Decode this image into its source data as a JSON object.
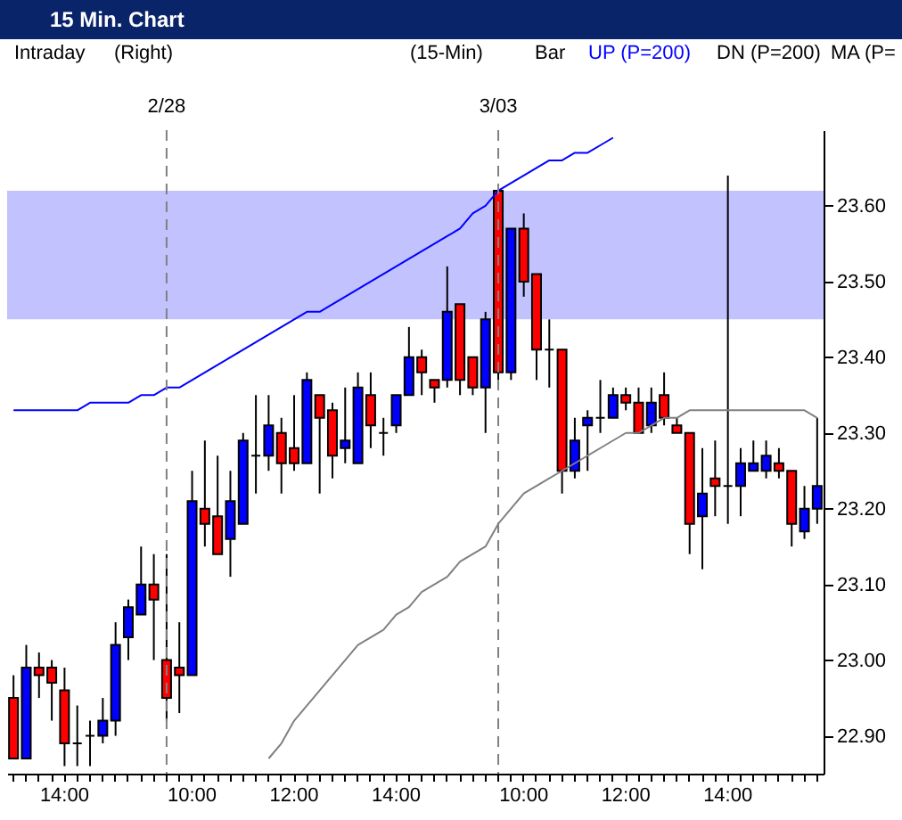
{
  "chart_data": {
    "type": "candlestick",
    "title": "15 Min. Chart",
    "annotations": [
      "Intraday",
      "(Right)",
      "(15-Min)",
      "Bar",
      "DN (P=200)",
      "MA (P=",
      "2/28",
      "3/03"
    ],
    "categories": [
      null,
      null,
      null,
      null,
      "14:00",
      null,
      null,
      null,
      null,
      null,
      null,
      null,
      null,
      null,
      "10:00",
      null,
      null,
      null,
      null,
      null,
      null,
      null,
      "12:00",
      null,
      null,
      null,
      null,
      null,
      null,
      null,
      "14:00",
      null,
      null,
      null,
      null,
      null,
      null,
      null,
      null,
      null,
      "10:00",
      null,
      null,
      null,
      null,
      null,
      null,
      null,
      "12:00",
      null,
      null,
      null,
      null,
      null,
      null,
      null,
      "14:00",
      null,
      null,
      null,
      null,
      null,
      null,
      null
    ],
    "ohlc": [
      [
        22.95,
        22.98,
        22.87,
        22.87
      ],
      [
        22.87,
        23.02,
        22.87,
        22.99
      ],
      [
        22.99,
        23.01,
        22.95,
        22.98
      ],
      [
        22.99,
        23.0,
        22.92,
        22.97
      ],
      [
        22.96,
        22.99,
        22.86,
        22.89
      ],
      [
        22.89,
        22.94,
        22.86,
        22.89
      ],
      [
        22.9,
        22.92,
        22.86,
        22.9
      ],
      [
        22.9,
        22.95,
        22.89,
        22.92
      ],
      [
        22.92,
        23.05,
        22.9,
        23.02
      ],
      [
        23.03,
        23.08,
        23.0,
        23.07
      ],
      [
        23.06,
        23.15,
        23.06,
        23.1
      ],
      [
        23.1,
        23.14,
        23.0,
        23.08
      ],
      [
        23.0,
        23.14,
        22.92,
        22.95
      ],
      [
        22.99,
        23.05,
        22.93,
        22.98
      ],
      [
        22.98,
        23.25,
        22.98,
        23.21
      ],
      [
        23.2,
        23.29,
        23.15,
        23.18
      ],
      [
        23.19,
        23.27,
        23.14,
        23.14
      ],
      [
        23.16,
        23.25,
        23.11,
        23.21
      ],
      [
        23.18,
        23.3,
        23.18,
        23.29
      ],
      [
        23.27,
        23.35,
        23.22,
        23.27
      ],
      [
        23.27,
        23.35,
        23.25,
        23.31
      ],
      [
        23.3,
        23.32,
        23.22,
        23.26
      ],
      [
        23.28,
        23.35,
        23.25,
        23.26
      ],
      [
        23.26,
        23.38,
        23.26,
        23.37
      ],
      [
        23.35,
        23.35,
        23.22,
        23.32
      ],
      [
        23.33,
        23.34,
        23.24,
        23.27
      ],
      [
        23.28,
        23.36,
        23.26,
        23.29
      ],
      [
        23.26,
        23.38,
        23.26,
        23.36
      ],
      [
        23.35,
        23.38,
        23.28,
        23.31
      ],
      [
        23.3,
        23.32,
        23.27,
        23.3
      ],
      [
        23.31,
        23.35,
        23.3,
        23.35
      ],
      [
        23.35,
        23.44,
        23.35,
        23.4
      ],
      [
        23.4,
        23.41,
        23.35,
        23.38
      ],
      [
        23.37,
        23.37,
        23.34,
        23.36
      ],
      [
        23.37,
        23.52,
        23.36,
        23.46
      ],
      [
        23.47,
        23.47,
        23.35,
        23.37
      ],
      [
        23.4,
        23.4,
        23.35,
        23.36
      ],
      [
        23.36,
        23.46,
        23.3,
        23.45
      ],
      [
        23.62,
        23.62,
        23.36,
        23.38
      ],
      [
        23.38,
        23.57,
        23.37,
        23.57
      ],
      [
        23.57,
        23.59,
        23.48,
        23.5
      ],
      [
        23.51,
        23.51,
        23.37,
        23.41
      ],
      [
        23.41,
        23.45,
        23.36,
        23.41
      ],
      [
        23.41,
        23.41,
        23.22,
        23.25
      ],
      [
        23.25,
        23.32,
        23.24,
        23.29
      ],
      [
        23.31,
        23.33,
        23.25,
        23.32
      ],
      [
        23.32,
        23.37,
        23.3,
        23.32
      ],
      [
        23.32,
        23.36,
        23.32,
        23.35
      ],
      [
        23.35,
        23.36,
        23.33,
        23.34
      ],
      [
        23.34,
        23.36,
        23.3,
        23.3
      ],
      [
        23.31,
        23.36,
        23.3,
        23.34
      ],
      [
        23.35,
        23.38,
        23.31,
        23.32
      ],
      [
        23.31,
        23.32,
        23.3,
        23.3
      ],
      [
        23.3,
        23.3,
        23.14,
        23.18
      ],
      [
        23.19,
        23.28,
        23.12,
        23.22
      ],
      [
        23.24,
        23.29,
        23.19,
        23.23
      ],
      [
        23.23,
        23.64,
        23.18,
        23.23
      ],
      [
        23.23,
        23.28,
        23.19,
        23.26
      ],
      [
        23.25,
        23.29,
        23.25,
        23.26
      ],
      [
        23.25,
        23.29,
        23.24,
        23.27
      ],
      [
        23.26,
        23.28,
        23.24,
        23.25
      ],
      [
        23.25,
        23.25,
        23.15,
        23.18
      ],
      [
        23.17,
        23.23,
        23.16,
        23.2
      ],
      [
        23.2,
        23.32,
        23.18,
        23.23
      ]
    ],
    "colors": [
      "#ff0000",
      "#0000ff",
      "#ff0000",
      "#ff0000",
      "#ff0000",
      "#000000",
      "#000000",
      "#0000ff",
      "#0000ff",
      "#0000ff",
      "#0000ff",
      "#ff0000",
      "#ff0000",
      "#ff0000",
      "#0000ff",
      "#ff0000",
      "#ff0000",
      "#0000ff",
      "#0000ff",
      "#000000",
      "#0000ff",
      "#ff0000",
      "#ff0000",
      "#0000ff",
      "#ff0000",
      "#ff0000",
      "#0000ff",
      "#0000ff",
      "#ff0000",
      "#000000",
      "#0000ff",
      "#0000ff",
      "#ff0000",
      "#ff0000",
      "#0000ff",
      "#ff0000",
      "#ff0000",
      "#0000ff",
      "#ff0000",
      "#0000ff",
      "#ff0000",
      "#ff0000",
      "#000000",
      "#ff0000",
      "#0000ff",
      "#0000ff",
      "#000000",
      "#0000ff",
      "#ff0000",
      "#ff0000",
      "#0000ff",
      "#ff0000",
      "#ff0000",
      "#ff0000",
      "#0000ff",
      "#ff0000",
      "#000000",
      "#0000ff",
      "#0000ff",
      "#0000ff",
      "#ff0000",
      "#ff0000",
      "#0000ff",
      "#0000ff"
    ],
    "series": [
      {
        "type": "line",
        "name": "UP (P=200)",
        "color": "#0000ff",
        "values": [
          23.33,
          23.33,
          23.33,
          23.33,
          23.33,
          23.33,
          23.34,
          23.34,
          23.34,
          23.34,
          23.35,
          23.35,
          23.36,
          23.36,
          23.37,
          23.38,
          23.39,
          23.4,
          23.41,
          23.42,
          23.43,
          23.44,
          23.45,
          23.46,
          23.46,
          23.47,
          23.48,
          23.49,
          23.5,
          23.51,
          23.52,
          23.53,
          23.54,
          23.55,
          23.56,
          23.57,
          23.59,
          23.6,
          23.62,
          23.63,
          23.64,
          23.65,
          23.66,
          23.66,
          23.67,
          23.67,
          23.68,
          23.69,
          null,
          null,
          null,
          null,
          null,
          null,
          null,
          null,
          null,
          null,
          null,
          null,
          null,
          null,
          null,
          null
        ]
      },
      {
        "type": "line",
        "color": "#808080",
        "values": [
          null,
          null,
          null,
          null,
          null,
          null,
          null,
          null,
          null,
          null,
          null,
          null,
          null,
          null,
          null,
          null,
          null,
          null,
          null,
          null,
          22.87,
          22.89,
          22.92,
          22.94,
          22.96,
          22.98,
          23.0,
          23.02,
          23.03,
          23.04,
          23.06,
          23.07,
          23.09,
          23.1,
          23.11,
          23.13,
          23.14,
          23.15,
          23.18,
          23.2,
          23.22,
          23.23,
          23.24,
          23.25,
          23.26,
          23.27,
          23.28,
          23.29,
          23.3,
          23.3,
          23.31,
          23.32,
          23.32,
          23.33,
          23.33,
          23.33,
          23.33,
          23.33,
          23.33,
          23.33,
          23.33,
          23.33,
          23.33,
          23.32
        ]
      }
    ],
    "ylim": [
      22.85,
      23.7
    ],
    "yticks": [
      {
        "value": 22.9,
        "label": "22.90"
      },
      {
        "value": 23.0,
        "label": "23.00"
      },
      {
        "value": 23.1,
        "label": "23.10"
      },
      {
        "value": 23.2,
        "label": "23.20"
      },
      {
        "value": 23.3,
        "label": "23.30"
      },
      {
        "value": 23.4,
        "label": "23.40"
      },
      {
        "value": 23.5,
        "label": "23.50"
      },
      {
        "value": 23.6,
        "label": "23.60"
      }
    ],
    "bands": [
      {
        "axis": "y",
        "from": 23.45,
        "to": 23.62,
        "color": "#9999ff"
      }
    ]
  }
}
